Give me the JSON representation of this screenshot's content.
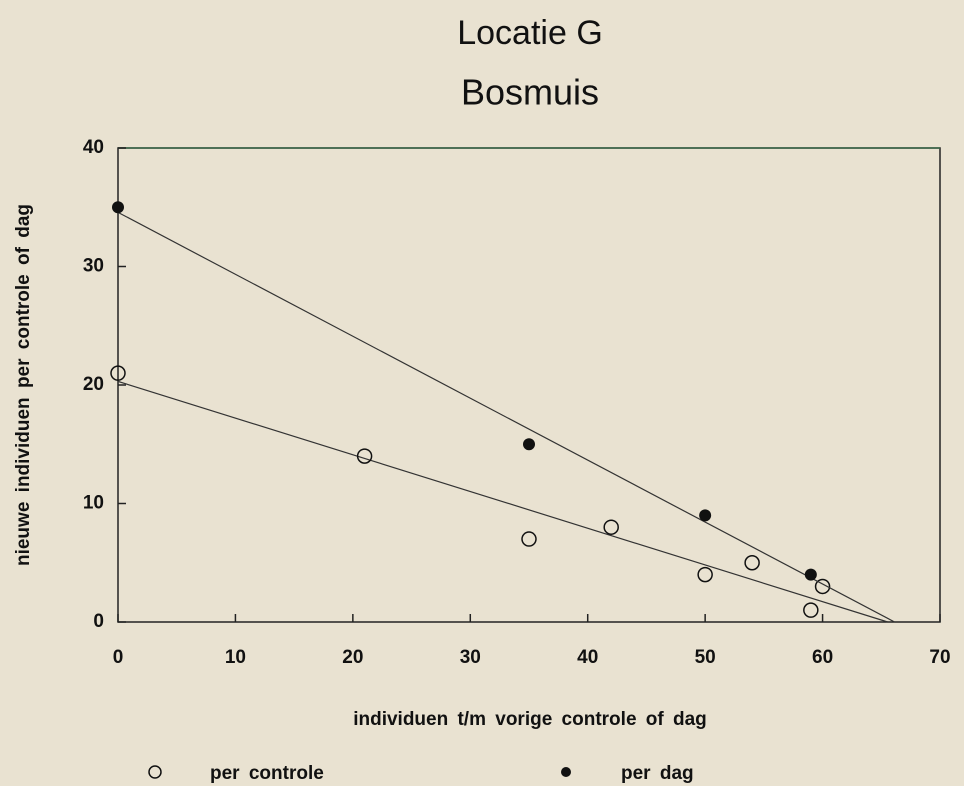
{
  "chart_data": {
    "type": "scatter",
    "title": "Locatie G",
    "subtitle": "Bosmuis",
    "x_label": "individuen t/m vorige controle of dag",
    "y_label": "nieuwe individuen per controle of dag",
    "series": [
      {
        "name": "per controle",
        "color": "#111111",
        "marker": "open",
        "x": [
          0,
          21,
          35,
          42,
          50,
          54,
          59,
          60
        ],
        "values": [
          21,
          14,
          7,
          8,
          4,
          5,
          1,
          3
        ]
      },
      {
        "name": "per dag",
        "color": "#111111",
        "marker": "filled",
        "x": [
          0,
          35,
          50,
          59
        ],
        "values": [
          35,
          15,
          9,
          4
        ]
      }
    ],
    "trendline": true,
    "xlim": [
      0,
      70
    ],
    "xticks": [
      0,
      10,
      20,
      30,
      40,
      50,
      60,
      70
    ],
    "ylim": [
      0,
      40
    ],
    "yticks": [
      0,
      10,
      20,
      30,
      40
    ]
  }
}
